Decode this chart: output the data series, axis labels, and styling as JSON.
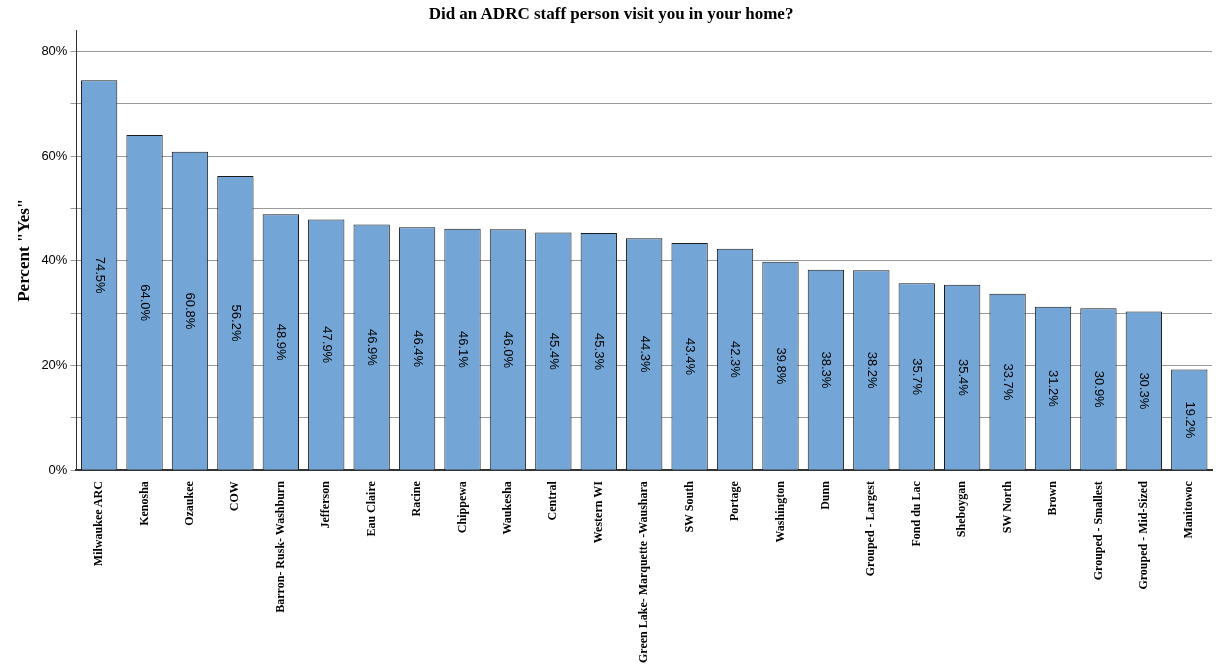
{
  "chart_data": {
    "type": "bar",
    "title": "Did an ADRC staff person visit you in your home?",
    "ylabel": "Percent \"Yes\"",
    "categories": [
      "Milwaukee ARC",
      "Kenosha",
      "Ozaukee",
      "COW",
      "Barron- Rusk- Washburn",
      "Jefferson",
      "Eau Claire",
      "Racine",
      "Chippewa",
      "Waukesha",
      "Central",
      "Western WI",
      "Green Lake- Marquette -Waushara",
      "SW South",
      "Portage",
      "Washington",
      "Dunn",
      "Grouped - Largest",
      "Fond du Lac",
      "Sheboygan",
      "SW North",
      "Brown",
      "Grouped - Smallest",
      "Grouped - Mid-Sized",
      "Manitowoc"
    ],
    "values": [
      74.5,
      64.0,
      60.8,
      56.2,
      48.9,
      47.9,
      46.9,
      46.4,
      46.1,
      46.0,
      45.4,
      45.3,
      44.3,
      43.4,
      42.3,
      39.8,
      38.3,
      38.2,
      35.7,
      35.4,
      33.7,
      31.2,
      30.9,
      30.3,
      19.2
    ],
    "value_labels": [
      "74.5%",
      "64.0%",
      "60.8%",
      "56.2%",
      "48.9%",
      "47.9%",
      "46.9%",
      "46.4%",
      "46.1%",
      "46.0%",
      "45.4%",
      "45.3%",
      "44.3%",
      "43.4%",
      "42.3%",
      "39.8%",
      "38.3%",
      "38.2%",
      "35.7%",
      "35.4%",
      "33.7%",
      "31.2%",
      "30.9%",
      "30.3%",
      "19.2%"
    ],
    "color": "#73a5d6",
    "ylim": [
      0,
      84
    ],
    "yticks": [
      {
        "value": 0,
        "label": "0%"
      },
      {
        "value": 10,
        "label": null
      },
      {
        "value": 20,
        "label": "20%"
      },
      {
        "value": 30,
        "label": null
      },
      {
        "value": 40,
        "label": "40%"
      },
      {
        "value": 50,
        "label": null
      },
      {
        "value": 60,
        "label": "60%"
      },
      {
        "value": 70,
        "label": null
      },
      {
        "value": 80,
        "label": "80%"
      }
    ],
    "grid": "y",
    "legend": false
  }
}
